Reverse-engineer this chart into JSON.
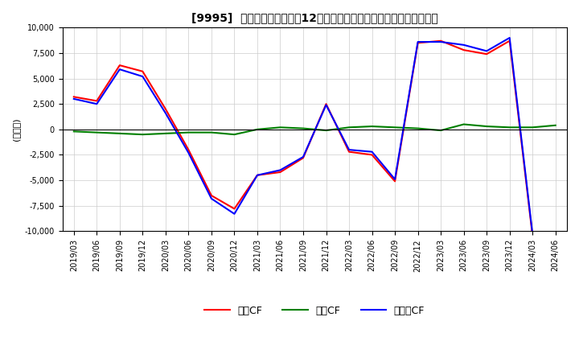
{
  "title": "[9995]  キャッシュフローの12か月移動合計の対前年同期増減額の推移",
  "ylabel": "(百万円)",
  "ylim": [
    -10000,
    10000
  ],
  "yticks": [
    -10000,
    -7500,
    -5000,
    -2500,
    0,
    2500,
    5000,
    7500,
    10000
  ],
  "legend_labels": [
    "営業CF",
    "投資CF",
    "フリーCF"
  ],
  "line_colors": [
    "#ff0000",
    "#008000",
    "#0000ff"
  ],
  "x_labels": [
    "2019/03",
    "2019/06",
    "2019/09",
    "2019/12",
    "2020/03",
    "2020/06",
    "2020/09",
    "2020/12",
    "2021/03",
    "2021/06",
    "2021/09",
    "2021/12",
    "2022/03",
    "2022/06",
    "2022/09",
    "2022/12",
    "2023/03",
    "2023/06",
    "2023/09",
    "2023/12",
    "2024/03",
    "2024/06"
  ],
  "operating_cf": [
    3200,
    2800,
    6300,
    5700,
    2000,
    -2000,
    -6500,
    -7800,
    -4500,
    -4200,
    -2800,
    2500,
    -2200,
    -2500,
    -5100,
    8500,
    8700,
    7800,
    7400,
    8700,
    -10500,
    null
  ],
  "investing_cf": [
    -200,
    -300,
    -400,
    -500,
    -400,
    -300,
    -300,
    -500,
    0,
    200,
    100,
    -100,
    200,
    300,
    200,
    100,
    -100,
    500,
    300,
    200,
    200,
    400
  ],
  "free_cf": [
    3000,
    2500,
    5900,
    5200,
    1600,
    -2300,
    -6800,
    -8300,
    -4500,
    -4000,
    -2700,
    2400,
    -2000,
    -2200,
    -4900,
    8600,
    8600,
    8300,
    7700,
    9000,
    -10300,
    null
  ],
  "figsize": [
    7.2,
    4.4
  ],
  "dpi": 100,
  "title_fontsize": 10,
  "axis_fontsize": 8,
  "tick_fontsize": 7,
  "legend_fontsize": 9,
  "linewidth": 1.5,
  "grid_color": "#cccccc",
  "background_color": "#ffffff"
}
